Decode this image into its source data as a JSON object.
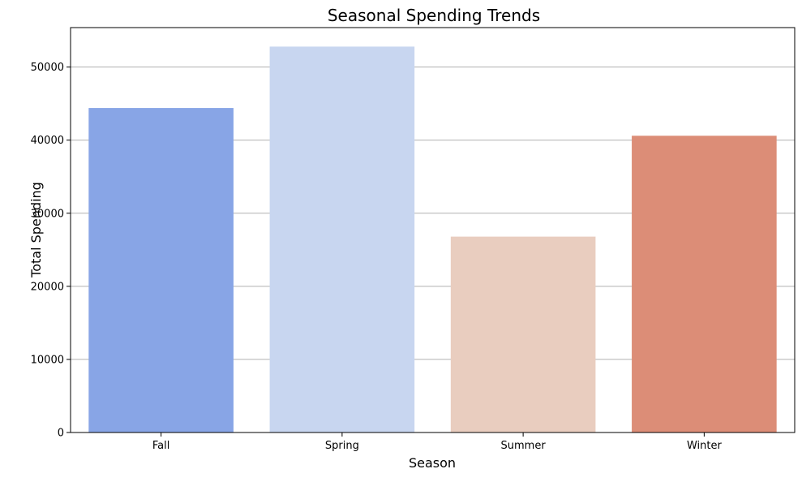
{
  "chart_data": {
    "type": "bar",
    "title": "Seasonal Spending Trends",
    "xlabel": "Season",
    "ylabel": "Total Spending",
    "categories": [
      "Fall",
      "Spring",
      "Summer",
      "Winter"
    ],
    "values": [
      44400,
      52800,
      26800,
      40600
    ],
    "colors": [
      "#88a5e6",
      "#c8d6f0",
      "#e9cdbf",
      "#dc8d77"
    ],
    "ylim": [
      0,
      55400
    ],
    "yticks": [
      0,
      10000,
      20000,
      30000,
      40000,
      50000
    ],
    "ytick_labels": [
      "0",
      "10000",
      "20000",
      "30000",
      "40000",
      "50000"
    ],
    "grid": "y",
    "grid_color": "#b0b0b0"
  }
}
